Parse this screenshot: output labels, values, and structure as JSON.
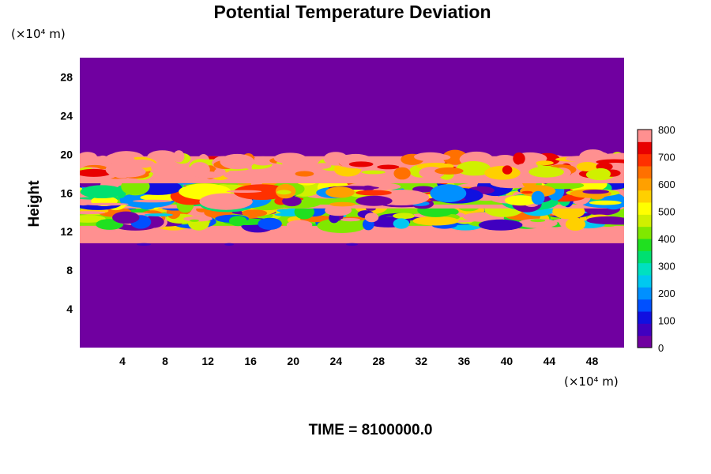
{
  "chart_data": {
    "type": "heatmap",
    "title": "Potential Temperature Deviation",
    "ylabel": "Height",
    "y_unit": "(×10⁴ m)",
    "x_unit": "(×10⁴ m)",
    "xlim": [
      0,
      51
    ],
    "ylim": [
      0,
      30
    ],
    "x_ticks": [
      "4",
      "8",
      "12",
      "16",
      "20",
      "24",
      "28",
      "32",
      "36",
      "40",
      "44",
      "48"
    ],
    "y_ticks": [
      "4",
      "8",
      "12",
      "16",
      "20",
      "24",
      "28"
    ],
    "colorbar": {
      "min": 0,
      "max": 800,
      "ticks": [
        "0",
        "100",
        "200",
        "300",
        "400",
        "500",
        "600",
        "700",
        "800"
      ]
    },
    "regions": [
      {
        "name": "background",
        "y_range": [
          0,
          30
        ],
        "value": 0
      },
      {
        "name": "upper-turbulent-band",
        "y_range": [
          17.8,
          19.8
        ],
        "value_range": [
          500,
          800
        ]
      },
      {
        "name": "upper-saturated-band",
        "y_range": [
          17.0,
          18.2
        ],
        "value": 800
      },
      {
        "name": "middle-turbulent-band",
        "y_range": [
          14.8,
          17.4
        ],
        "value_range": [
          0,
          800
        ]
      },
      {
        "name": "middle-saturated-band",
        "y_range": [
          14.4,
          15.0
        ],
        "value": 800
      },
      {
        "name": "lower-turbulent-band",
        "y_range": [
          12.6,
          14.6
        ],
        "value_range": [
          0,
          800
        ]
      },
      {
        "name": "lower-saturated-band",
        "y_range": [
          10.8,
          12.8
        ],
        "value": 800
      }
    ],
    "time_label": "TIME = 8100000.0"
  }
}
